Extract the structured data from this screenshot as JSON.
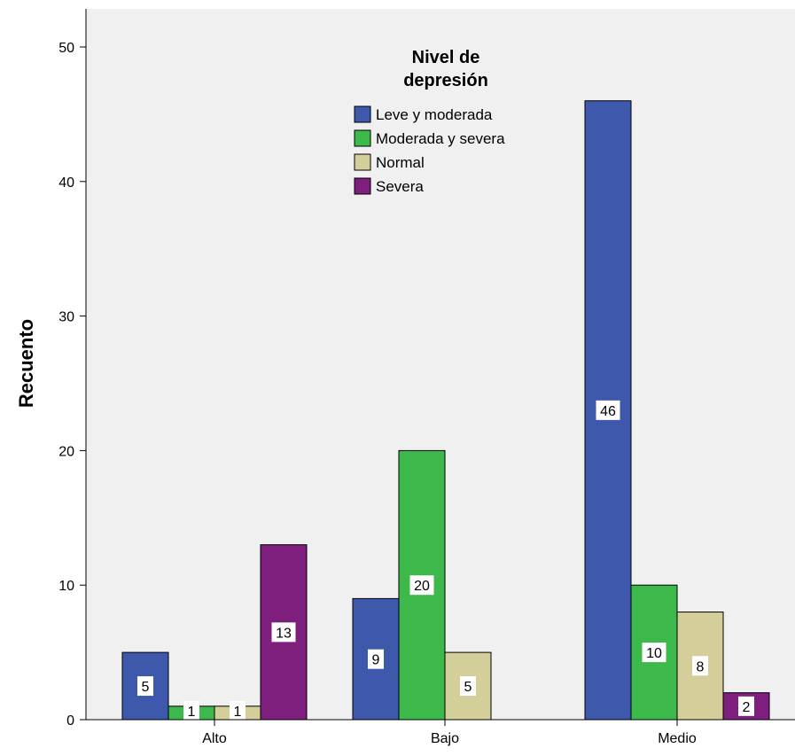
{
  "chart_data": {
    "type": "bar",
    "categories": [
      "Alto",
      "Bajo",
      "Medio"
    ],
    "series": [
      {
        "name": "Leve y moderada",
        "color": "#3e58ac",
        "values": [
          5,
          9,
          46
        ]
      },
      {
        "name": "Moderada y severa",
        "color": "#3cb94a",
        "values": [
          1,
          20,
          10
        ]
      },
      {
        "name": "Normal",
        "color": "#d3ce9a",
        "values": [
          1,
          5,
          8
        ]
      },
      {
        "name": "Severa",
        "color": "#7e1f7e",
        "values": [
          13,
          0,
          2
        ]
      }
    ],
    "title": "",
    "xlabel": "",
    "ylabel": "Recuento",
    "ylim": [
      0,
      52
    ],
    "yticks": [
      0,
      10,
      20,
      30,
      40,
      50
    ],
    "legend": {
      "title_lines": [
        "Nivel de",
        "depresión"
      ],
      "placement": "top-center"
    },
    "plot_background": "#f0f0f0",
    "grid": false
  }
}
